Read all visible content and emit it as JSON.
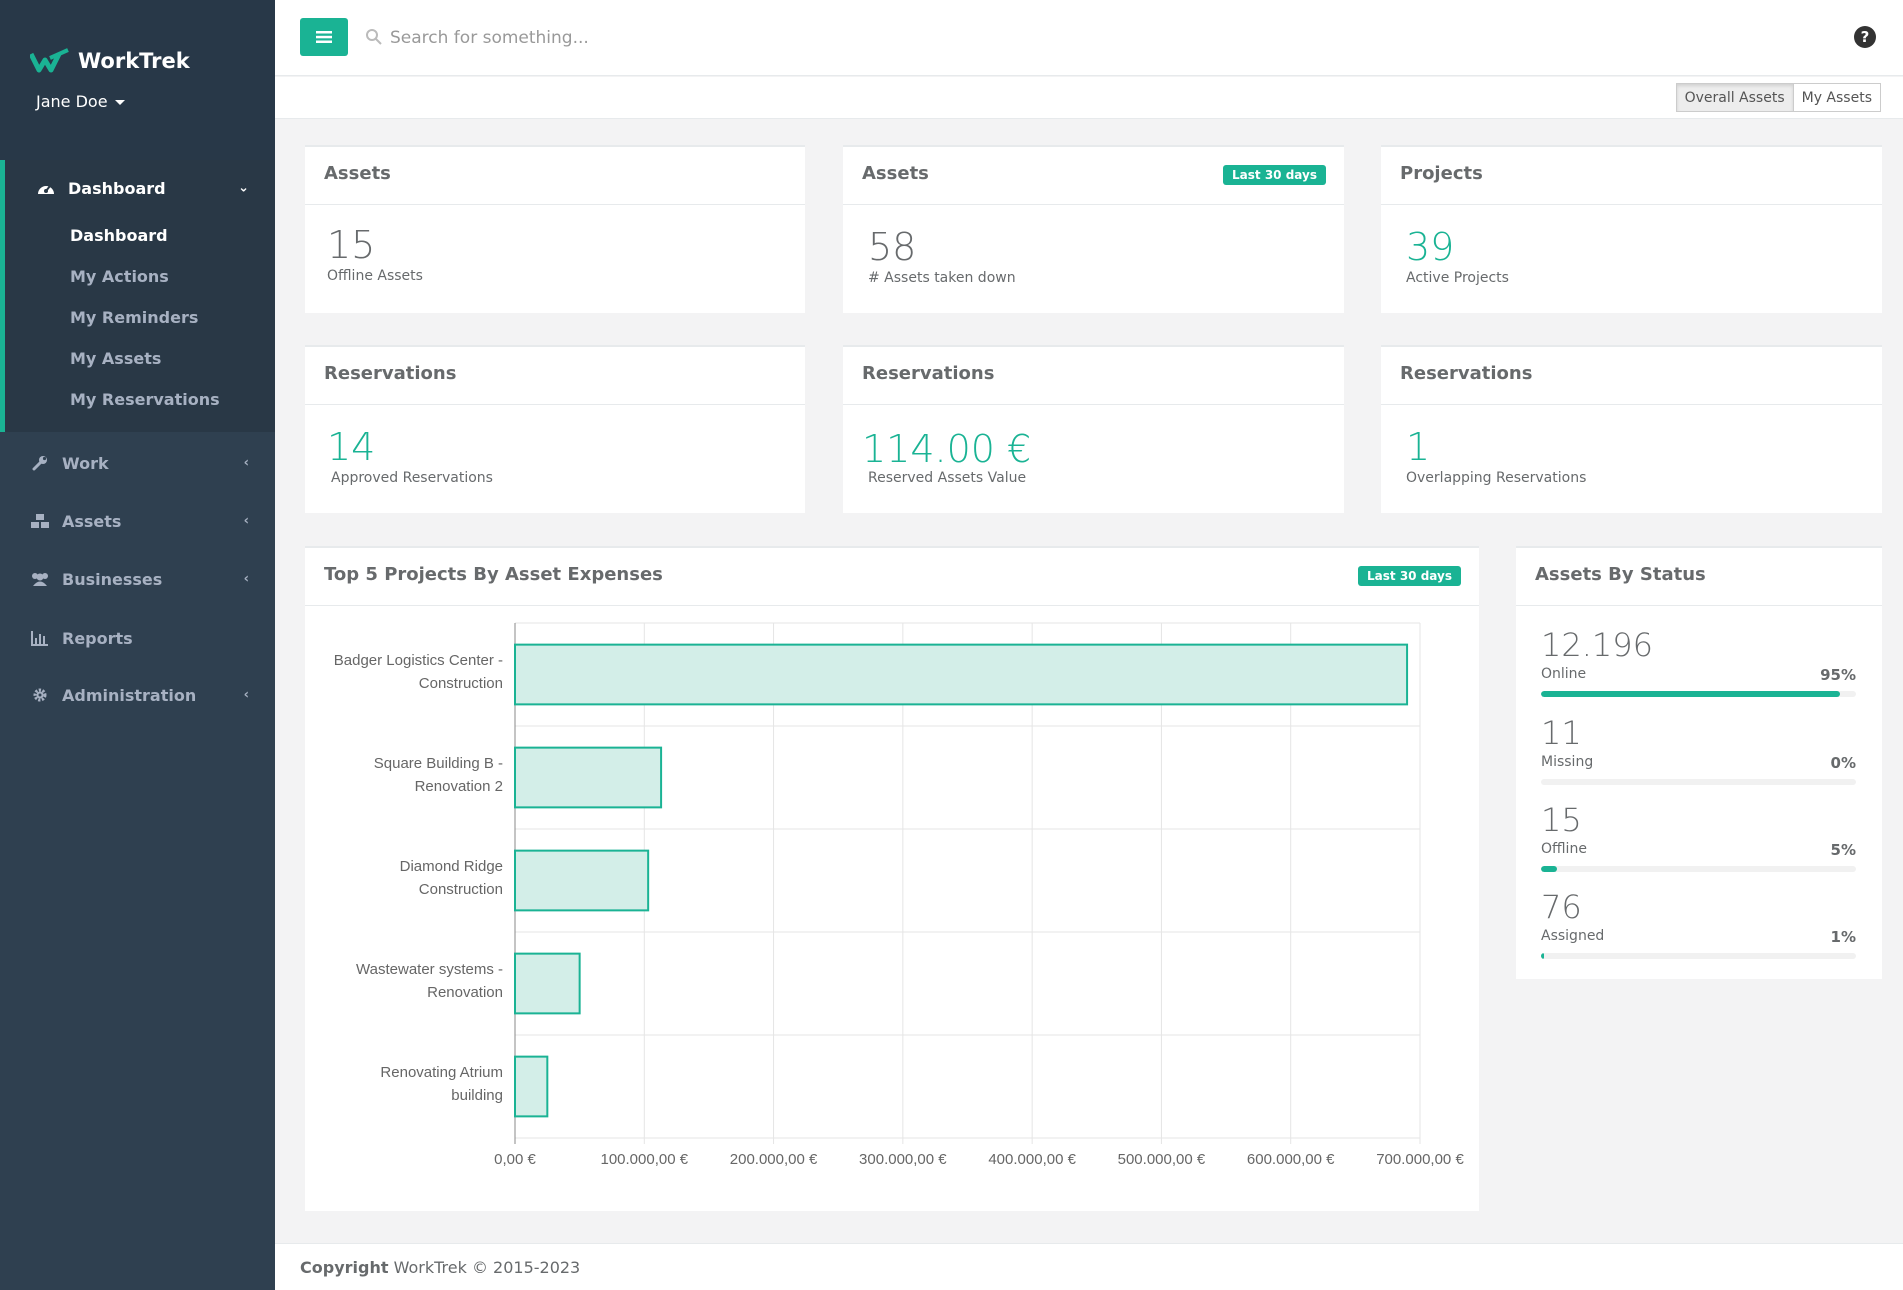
{
  "app": {
    "logo_text": "WorkTrek",
    "user_name": "Jane Doe"
  },
  "sidebar": {
    "dashboard_label": "Dashboard",
    "sub_items": [
      "Dashboard",
      "My Actions",
      "My Reminders",
      "My Assets",
      "My Reservations"
    ],
    "work_label": "Work",
    "assets_label": "Assets",
    "businesses_label": "Businesses",
    "reports_label": "Reports",
    "administration_label": "Administration"
  },
  "topbar": {
    "search_placeholder": "Search for something...",
    "toggle_overall": "Overall Assets",
    "toggle_my": "My Assets"
  },
  "cards": {
    "c1": {
      "title": "Assets",
      "value": "15",
      "label": "Offline Assets"
    },
    "c2": {
      "title": "Assets",
      "badge": "Last 30 days",
      "value": "58",
      "label": "# Assets taken down"
    },
    "c3": {
      "title": "Projects",
      "value": "39",
      "label": "Active Projects"
    },
    "c4": {
      "title": "Reservations",
      "value": "14",
      "label": "Approved Reservations"
    },
    "c5": {
      "title": "Reservations",
      "value": "114.00 €",
      "label": "Reserved Assets Value"
    },
    "c6": {
      "title": "Reservations",
      "value": "1",
      "label": "Overlapping Reservations"
    }
  },
  "chart_panel": {
    "title": "Top 5 Projects By Asset Expenses",
    "badge": "Last 30 days"
  },
  "chart_data": {
    "type": "bar",
    "orientation": "horizontal",
    "categories": [
      [
        "Badger Logistics Center -",
        "Construction"
      ],
      [
        "Square Building B -",
        "Renovation 2"
      ],
      [
        "Diamond Ridge",
        "Construction"
      ],
      [
        "Wastewater systems -",
        "Renovation"
      ],
      [
        "Renovating Atrium",
        "building"
      ]
    ],
    "values": [
      690000,
      113000,
      103000,
      50000,
      25000
    ],
    "xlim": [
      0,
      700000
    ],
    "x_ticks": [
      0,
      100000,
      200000,
      300000,
      400000,
      500000,
      600000,
      700000
    ],
    "x_tick_labels": [
      "0,00 €",
      "100.000,00 €",
      "200.000,00 €",
      "300.000,00 €",
      "400.000,00 €",
      "500.000,00 €",
      "600.000,00 €",
      "700.000,00 €"
    ],
    "grid": true,
    "bar_fill": "#d3eee8",
    "bar_stroke": "#1ab394"
  },
  "status_panel": {
    "title": "Assets By Status",
    "items": [
      {
        "value": "12.196",
        "label": "Online",
        "pct": "95%",
        "fill": 95
      },
      {
        "value": "11",
        "label": "Missing",
        "pct": "0%",
        "fill": 0
      },
      {
        "value": "15",
        "label": "Offline",
        "pct": "5%",
        "fill": 5
      },
      {
        "value": "76",
        "label": "Assigned",
        "pct": "1%",
        "fill": 1
      }
    ]
  },
  "footer": {
    "copyright_strong": "Copyright",
    "copyright_text": "WorkTrek © 2015-2023"
  },
  "colors": {
    "accent": "#1ab394",
    "sidebar": "#2f4050"
  }
}
